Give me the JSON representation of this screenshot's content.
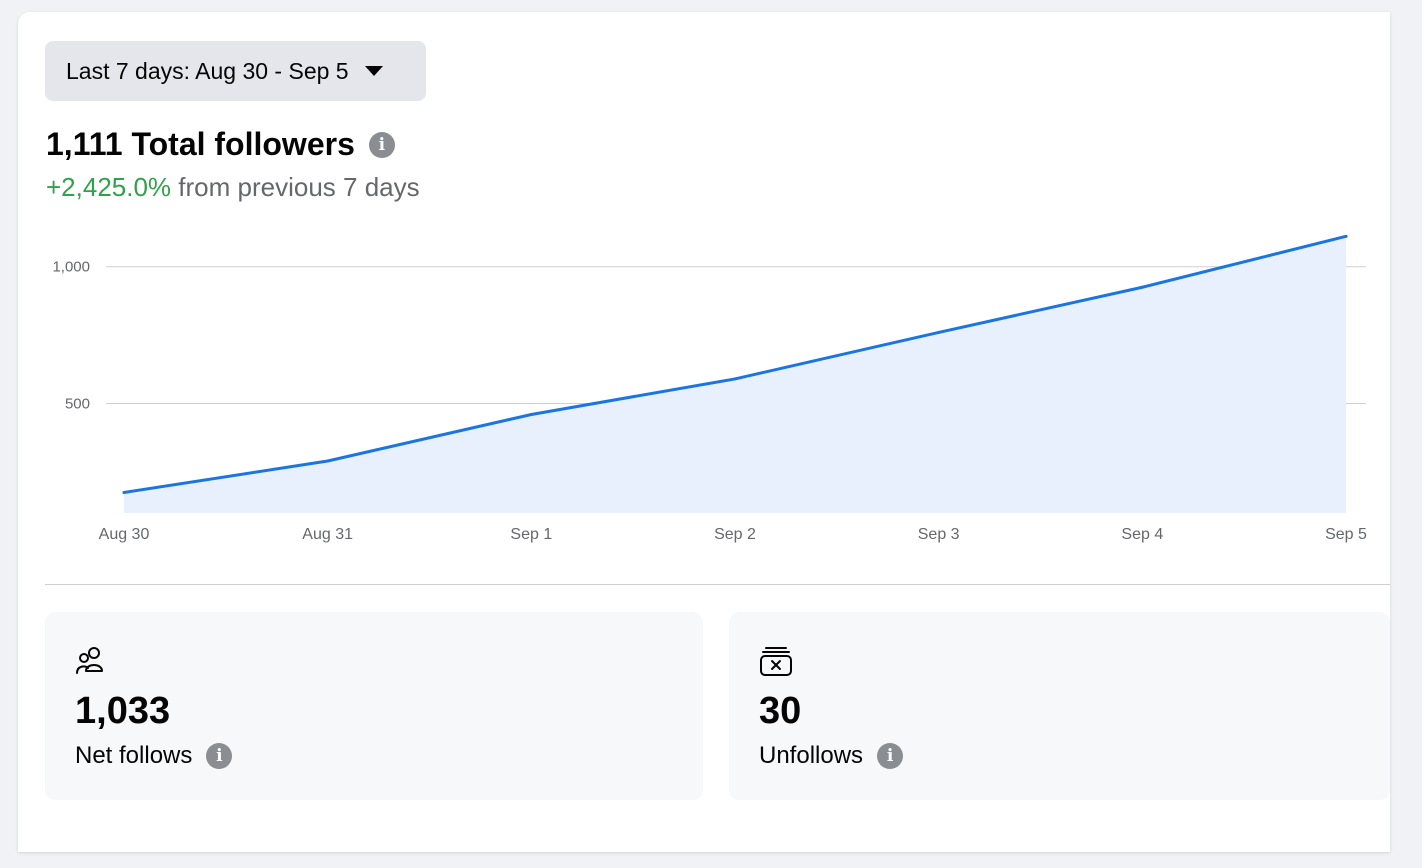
{
  "date_range": {
    "label": "Last 7 days: Aug 30 - Sep 5"
  },
  "summary": {
    "total": "1,111 Total followers",
    "change_pct": "+2,425.0%",
    "change_text": " from previous 7 days"
  },
  "colors": {
    "line": "#1b74e4",
    "area": "#e7f0fc",
    "positive": "#31a24c"
  },
  "chart_data": {
    "type": "area",
    "title": "",
    "xlabel": "",
    "ylabel": "",
    "categories": [
      "Aug 30",
      "Aug 31",
      "Sep 1",
      "Sep 2",
      "Sep 3",
      "Sep 4",
      "Sep 5"
    ],
    "series": [
      {
        "values": [
          175,
          290,
          460,
          590,
          760,
          925,
          1111
        ]
      }
    ],
    "yticks": [
      500,
      1000
    ],
    "ytick_labels": [
      "500",
      "1,000"
    ],
    "ylim": [
      100,
      1200
    ],
    "grid": true
  },
  "stats": {
    "net_follows": {
      "value": "1,033",
      "label": "Net follows",
      "icon": "people-icon"
    },
    "unfollows": {
      "value": "30",
      "label": "Unfollows",
      "icon": "unfollow-box-icon"
    }
  }
}
